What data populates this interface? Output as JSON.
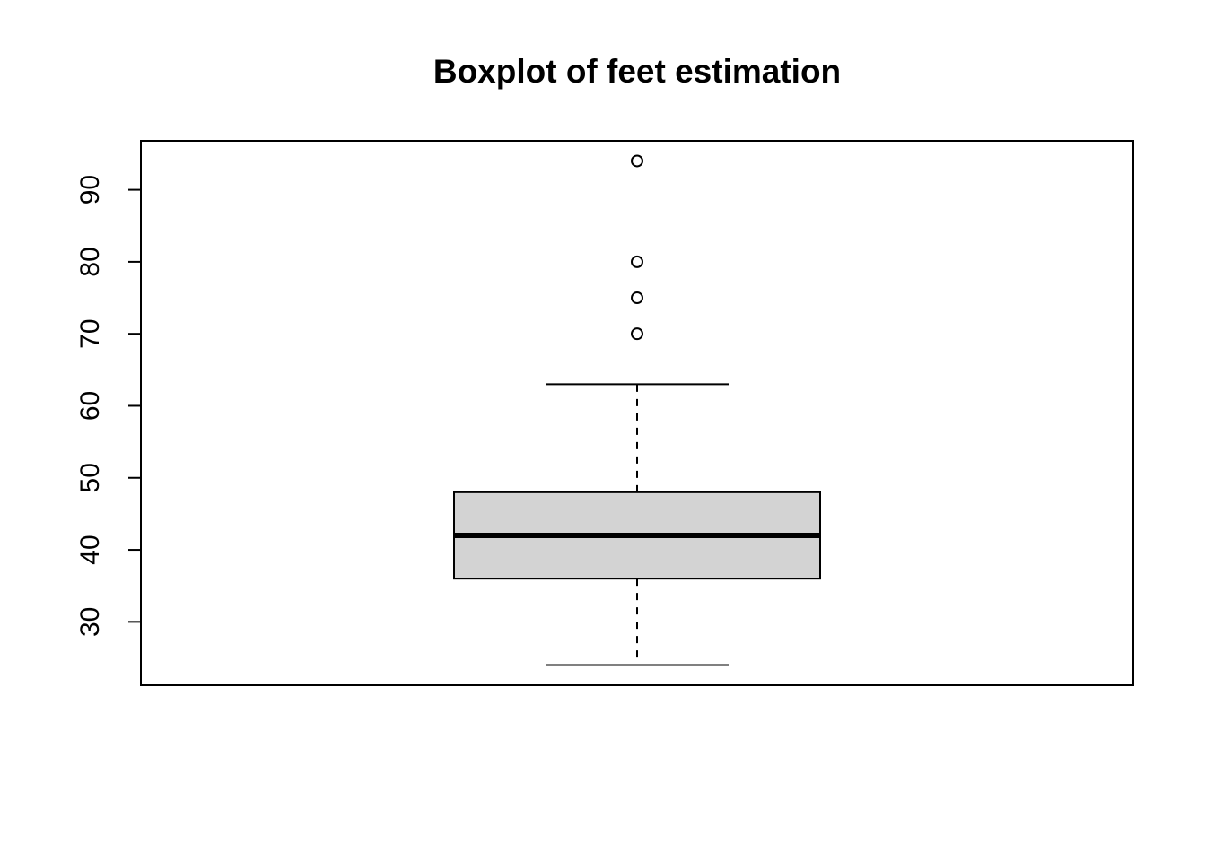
{
  "chart_data": {
    "type": "boxplot",
    "title": "Boxplot of feet estimation",
    "xlabel": "",
    "ylabel": "",
    "ylim": [
      21.2,
      96.8
    ],
    "yticks": [
      30,
      40,
      50,
      60,
      70,
      80,
      90
    ],
    "ytick_labels": [
      "30",
      "40",
      "50",
      "60",
      "70",
      "80",
      "90"
    ],
    "grid": false,
    "legend": "none",
    "box": {
      "whisker_low": 24,
      "q1": 36,
      "median": 42,
      "q3": 48,
      "whisker_high": 63,
      "outliers": [
        70,
        75,
        80,
        94
      ]
    },
    "colors": {
      "box_fill": "#d3d3d3",
      "stroke": "#000000",
      "background": "#ffffff"
    }
  }
}
